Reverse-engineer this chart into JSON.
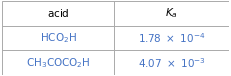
{
  "col_labels": [
    "acid",
    "$K_a$"
  ],
  "rows": [
    [
      "$\\mathrm{HCO_2H}$",
      "$1.78 \\times 10^{-4}$"
    ],
    [
      "$\\mathrm{CH_3COCO_2H}$",
      "$4.07 \\times 10^{-3}$"
    ]
  ],
  "header_bg": "#ffffff",
  "row_bg": "#ffffff",
  "header_text_color": "#000000",
  "chem_text_color": "#4472c4",
  "value_text_color": "#4472c4",
  "border_color": "#aaaaaa",
  "font_size": 7.5,
  "header_font_size": 7.5,
  "col_split": 0.495,
  "fig_width": 2.31,
  "fig_height": 0.76
}
